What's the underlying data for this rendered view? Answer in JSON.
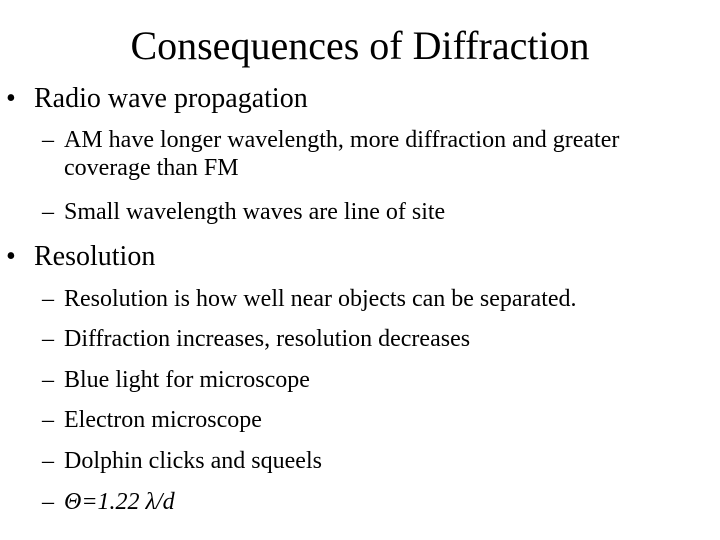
{
  "title": "Consequences of Diffraction",
  "bullets": [
    {
      "marker": "•",
      "label": "Radio wave propagation",
      "subitems": [
        {
          "marker": "–",
          "line1": "AM have longer wavelength, more diffraction and greater",
          "line2": "coverage than FM"
        },
        {
          "marker": "–",
          "line1": "Small wavelength waves are line of site"
        }
      ]
    },
    {
      "marker": "•",
      "label": "Resolution",
      "subitems": [
        {
          "marker": "–",
          "line1": "Resolution is how well near objects can be separated."
        },
        {
          "marker": "–",
          "line1": "Diffraction increases, resolution decreases"
        },
        {
          "marker": "–",
          "line1": "Blue light for microscope"
        },
        {
          "marker": "–",
          "line1": "Electron microscope"
        },
        {
          "marker": "–",
          "line1": "Dolphin clicks and squeels"
        },
        {
          "marker": "–",
          "line1": "Θ=1.22 λ/d"
        }
      ]
    }
  ]
}
